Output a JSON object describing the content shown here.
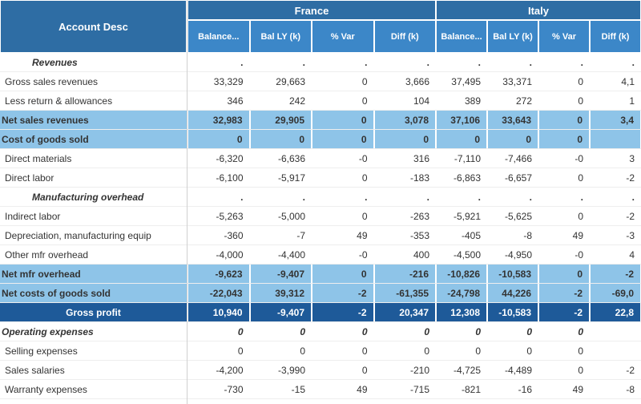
{
  "headers": {
    "desc": "Account Desc",
    "countries": [
      "France",
      "Italy"
    ],
    "subcols": [
      "Balance...",
      "Bal LY (k)",
      "% Var",
      "Diff (k)"
    ]
  },
  "colors": {
    "header_dark": "#2e6da4",
    "header_light": "#3c87c8",
    "net_row": "#8ec4e8",
    "gp_row": "#1e5a99",
    "text": "#333333",
    "text_inverse": "#ffffff"
  },
  "rows": [
    {
      "type": "hdr-cat",
      "desc": "Revenues",
      "fr": [
        ".",
        ".",
        ".",
        "."
      ],
      "it": [
        ".",
        ".",
        ".",
        "."
      ]
    },
    {
      "type": "detail",
      "desc": "Gross sales revenues",
      "fr": [
        "33,329",
        "29,663",
        "0",
        "3,666"
      ],
      "it": [
        "37,495",
        "33,371",
        "0",
        "4,1"
      ]
    },
    {
      "type": "detail",
      "desc": "Less return & allowances",
      "fr": [
        "346",
        "242",
        "0",
        "104"
      ],
      "it": [
        "389",
        "272",
        "0",
        "1"
      ]
    },
    {
      "type": "net",
      "desc": "Net sales revenues",
      "fr": [
        "32,983",
        "29,905",
        "0",
        "3,078"
      ],
      "it": [
        "37,106",
        "33,643",
        "0",
        "3,4"
      ]
    },
    {
      "type": "net",
      "desc": "Cost of goods sold",
      "fr": [
        "0",
        "0",
        "0",
        "0"
      ],
      "it": [
        "0",
        "0",
        "0",
        ""
      ]
    },
    {
      "type": "detail",
      "desc": "Direct materials",
      "fr": [
        "-6,320",
        "-6,636",
        "-0",
        "316"
      ],
      "it": [
        "-7,110",
        "-7,466",
        "-0",
        "3"
      ]
    },
    {
      "type": "detail",
      "desc": "Direct labor",
      "fr": [
        "-6,100",
        "-5,917",
        "0",
        "-183"
      ],
      "it": [
        "-6,863",
        "-6,657",
        "0",
        "-2"
      ]
    },
    {
      "type": "hdr-cat",
      "desc": "Manufacturing overhead",
      "fr": [
        ".",
        ".",
        ".",
        "."
      ],
      "it": [
        ".",
        ".",
        ".",
        "."
      ]
    },
    {
      "type": "detail",
      "desc": "Indirect labor",
      "fr": [
        "-5,263",
        "-5,000",
        "0",
        "-263"
      ],
      "it": [
        "-5,921",
        "-5,625",
        "0",
        "-2"
      ]
    },
    {
      "type": "detail",
      "desc": "Depreciation, manufacturing equip",
      "fr": [
        "-360",
        "-7",
        "49",
        "-353"
      ],
      "it": [
        "-405",
        "-8",
        "49",
        "-3"
      ]
    },
    {
      "type": "detail",
      "desc": "Other mfr overhead",
      "fr": [
        "-4,000",
        "-4,400",
        "-0",
        "400"
      ],
      "it": [
        "-4,500",
        "-4,950",
        "-0",
        "4"
      ]
    },
    {
      "type": "net",
      "desc": "Net mfr overhead",
      "fr": [
        "-9,623",
        "-9,407",
        "0",
        "-216"
      ],
      "it": [
        "-10,826",
        "-10,583",
        "0",
        "-2"
      ]
    },
    {
      "type": "net",
      "desc": "Net costs of goods sold",
      "fr": [
        "-22,043",
        "39,312",
        "-2",
        "-61,355"
      ],
      "it": [
        "-24,798",
        "44,226",
        "-2",
        "-69,0"
      ]
    },
    {
      "type": "gp",
      "desc": "Gross profit",
      "fr": [
        "10,940",
        "-9,407",
        "-2",
        "20,347"
      ],
      "it": [
        "12,308",
        "-10,583",
        "-2",
        "22,8"
      ]
    },
    {
      "type": "opex",
      "desc": "Operating expenses",
      "fr": [
        "0",
        "0",
        "0",
        "0"
      ],
      "it": [
        "0",
        "0",
        "0",
        ""
      ]
    },
    {
      "type": "detail",
      "desc": "Selling expenses",
      "fr": [
        "0",
        "0",
        "0",
        "0"
      ],
      "it": [
        "0",
        "0",
        "0",
        ""
      ]
    },
    {
      "type": "detail",
      "desc": "Sales salaries",
      "fr": [
        "-4,200",
        "-3,990",
        "0",
        "-210"
      ],
      "it": [
        "-4,725",
        "-4,489",
        "0",
        "-2"
      ]
    },
    {
      "type": "detail",
      "desc": "Warranty expenses",
      "fr": [
        "-730",
        "-15",
        "49",
        "-715"
      ],
      "it": [
        "-821",
        "-16",
        "49",
        "-8"
      ]
    }
  ]
}
